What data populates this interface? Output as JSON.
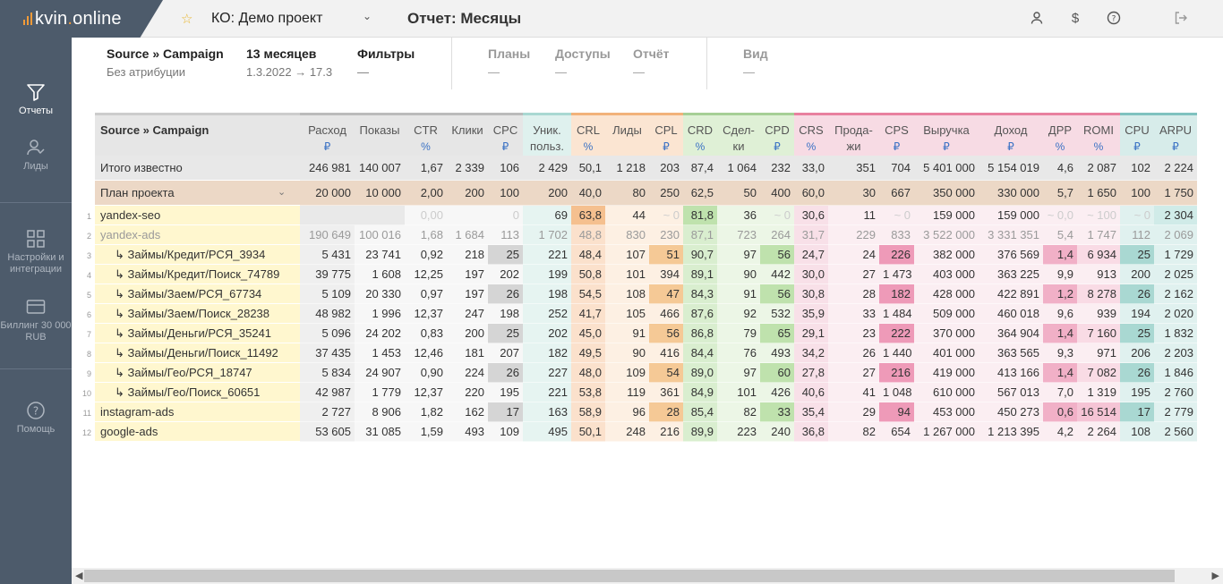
{
  "app": {
    "brand": "kvin",
    "brand_dot": ".",
    "brand_tld": "online"
  },
  "header": {
    "project": "КО: Демо проект",
    "report_title": "Отчет: Месяцы"
  },
  "sidebar": {
    "items": [
      {
        "label": "Отчеты",
        "icon": "filter-icon"
      },
      {
        "label": "Лиды",
        "icon": "user-check-icon"
      },
      {
        "label": "Настройки и интеграции",
        "icon": "grid-icon"
      },
      {
        "label": "Биллинг 30 000 RUB",
        "icon": "card-icon"
      },
      {
        "label": "Помощь",
        "icon": "help-icon"
      }
    ]
  },
  "filters": {
    "groups": [
      {
        "title": "Source » Campaign",
        "sub": "Без атрибуции"
      },
      {
        "title": "13 месяцев",
        "sub": "1.3.2022 → 17.3"
      },
      {
        "title": "Фильтры",
        "sub": "—"
      },
      {
        "title": "Планы",
        "sub": "—"
      },
      {
        "title": "Доступы",
        "sub": "—"
      },
      {
        "title": "Отчёт",
        "sub": "—"
      },
      {
        "title": "Вид",
        "sub": "—"
      }
    ]
  },
  "table": {
    "columns": [
      {
        "label": "Source » Campaign",
        "unit": ""
      },
      {
        "label": "Расход",
        "unit": "₽"
      },
      {
        "label": "Показы",
        "unit": ""
      },
      {
        "label": "CTR",
        "unit": "%"
      },
      {
        "label": "Клики",
        "unit": ""
      },
      {
        "label": "CPC",
        "unit": "₽"
      },
      {
        "label": "Уник. польз.",
        "unit": ""
      },
      {
        "label": "CRL",
        "unit": "%"
      },
      {
        "label": "Лиды",
        "unit": ""
      },
      {
        "label": "CPL",
        "unit": "₽"
      },
      {
        "label": "CRD",
        "unit": "%"
      },
      {
        "label": "Сдел-ки",
        "unit": ""
      },
      {
        "label": "CPD",
        "unit": "₽"
      },
      {
        "label": "CRS",
        "unit": "%"
      },
      {
        "label": "Прода-жи",
        "unit": ""
      },
      {
        "label": "CPS",
        "unit": "₽"
      },
      {
        "label": "Выручка",
        "unit": "₽"
      },
      {
        "label": "Доход",
        "unit": "₽"
      },
      {
        "label": "ДРР",
        "unit": "%"
      },
      {
        "label": "ROMI",
        "unit": "%"
      },
      {
        "label": "CPU",
        "unit": "₽"
      },
      {
        "label": "ARPU",
        "unit": "₽"
      }
    ],
    "total": [
      "Итого известно",
      "246 981",
      "140 007",
      "1,67",
      "2 339",
      "106",
      "2 429",
      "50,1",
      "1 218",
      "203",
      "87,4",
      "1 064",
      "232",
      "33,0",
      "351",
      "704",
      "5 401 000",
      "5 154 019",
      "4,6",
      "2 087",
      "102",
      "2 224"
    ],
    "plan": [
      "План проекта",
      "20 000",
      "10 000",
      "2,00",
      "200",
      "100",
      "200",
      "40,0",
      "80",
      "250",
      "62,5",
      "50",
      "400",
      "60,0",
      "30",
      "667",
      "350 000",
      "330 000",
      "5,7",
      "1 650",
      "100",
      "1 750"
    ],
    "rows": [
      {
        "num": "1",
        "cells": [
          "yandex-seo",
          "",
          "",
          "0,00",
          "",
          "0",
          "69",
          "63,8",
          "44",
          "~ 0",
          "81,8",
          "36",
          "~ 0",
          "30,6",
          "11",
          "~ 0",
          "159 000",
          "159 000",
          "~ 0,0",
          "~ 100",
          "~ 0",
          "2 304"
        ]
      },
      {
        "num": "2",
        "cells": [
          "yandex-ads",
          "190 649",
          "100 016",
          "1,68",
          "1 684",
          "113",
          "1 702",
          "48,8",
          "830",
          "230",
          "87,1",
          "723",
          "264",
          "31,7",
          "229",
          "833",
          "3 522 000",
          "3 331 351",
          "5,4",
          "1 747",
          "112",
          "2 069"
        ]
      },
      {
        "num": "3",
        "cells": [
          "↳ Займы/Кредит/РСЯ_3934",
          "5 431",
          "23 741",
          "0,92",
          "218",
          "25",
          "221",
          "48,4",
          "107",
          "51",
          "90,7",
          "97",
          "56",
          "24,7",
          "24",
          "226",
          "382 000",
          "376 569",
          "1,4",
          "6 934",
          "25",
          "1 729"
        ]
      },
      {
        "num": "4",
        "cells": [
          "↳ Займы/Кредит/Поиск_74789",
          "39 775",
          "1 608",
          "12,25",
          "197",
          "202",
          "199",
          "50,8",
          "101",
          "394",
          "89,1",
          "90",
          "442",
          "30,0",
          "27",
          "1 473",
          "403 000",
          "363 225",
          "9,9",
          "913",
          "200",
          "2 025"
        ]
      },
      {
        "num": "5",
        "cells": [
          "↳ Займы/Заем/РСЯ_67734",
          "5 109",
          "20 330",
          "0,97",
          "197",
          "26",
          "198",
          "54,5",
          "108",
          "47",
          "84,3",
          "91",
          "56",
          "30,8",
          "28",
          "182",
          "428 000",
          "422 891",
          "1,2",
          "8 278",
          "26",
          "2 162"
        ]
      },
      {
        "num": "6",
        "cells": [
          "↳ Займы/Заем/Поиск_28238",
          "48 982",
          "1 996",
          "12,37",
          "247",
          "198",
          "252",
          "41,7",
          "105",
          "466",
          "87,6",
          "92",
          "532",
          "35,9",
          "33",
          "1 484",
          "509 000",
          "460 018",
          "9,6",
          "939",
          "194",
          "2 020"
        ]
      },
      {
        "num": "7",
        "cells": [
          "↳ Займы/Деньги/РСЯ_35241",
          "5 096",
          "24 202",
          "0,83",
          "200",
          "25",
          "202",
          "45,0",
          "91",
          "56",
          "86,8",
          "79",
          "65",
          "29,1",
          "23",
          "222",
          "370 000",
          "364 904",
          "1,4",
          "7 160",
          "25",
          "1 832"
        ]
      },
      {
        "num": "8",
        "cells": [
          "↳ Займы/Деньги/Поиск_11492",
          "37 435",
          "1 453",
          "12,46",
          "181",
          "207",
          "182",
          "49,5",
          "90",
          "416",
          "84,4",
          "76",
          "493",
          "34,2",
          "26",
          "1 440",
          "401 000",
          "363 565",
          "9,3",
          "971",
          "206",
          "2 203"
        ]
      },
      {
        "num": "9",
        "cells": [
          "↳ Займы/Гео/РСЯ_18747",
          "5 834",
          "24 907",
          "0,90",
          "224",
          "26",
          "227",
          "48,0",
          "109",
          "54",
          "89,0",
          "97",
          "60",
          "27,8",
          "27",
          "216",
          "419 000",
          "413 166",
          "1,4",
          "7 082",
          "26",
          "1 846"
        ]
      },
      {
        "num": "10",
        "cells": [
          "↳ Займы/Гео/Поиск_60651",
          "42 987",
          "1 779",
          "12,37",
          "220",
          "195",
          "221",
          "53,8",
          "119",
          "361",
          "84,9",
          "101",
          "426",
          "40,6",
          "41",
          "1 048",
          "610 000",
          "567 013",
          "7,0",
          "1 319",
          "195",
          "2 760"
        ]
      },
      {
        "num": "11",
        "cells": [
          "instagram-ads",
          "2 727",
          "8 906",
          "1,82",
          "162",
          "17",
          "163",
          "58,9",
          "96",
          "28",
          "85,4",
          "82",
          "33",
          "35,4",
          "29",
          "94",
          "453 000",
          "450 273",
          "0,6",
          "16 514",
          "17",
          "2 779"
        ]
      },
      {
        "num": "12",
        "cells": [
          "google-ads",
          "53 605",
          "31 085",
          "1,59",
          "493",
          "109",
          "495",
          "50,1",
          "248",
          "216",
          "89,9",
          "223",
          "240",
          "36,8",
          "82",
          "654",
          "1 267 000",
          "1 213 395",
          "4,2",
          "2 264",
          "108",
          "2 560"
        ]
      }
    ]
  },
  "colors": {
    "sidebar": "#4d5b6b",
    "accent_orange": "#f29b38",
    "unit_blue": "#3b72c4"
  }
}
